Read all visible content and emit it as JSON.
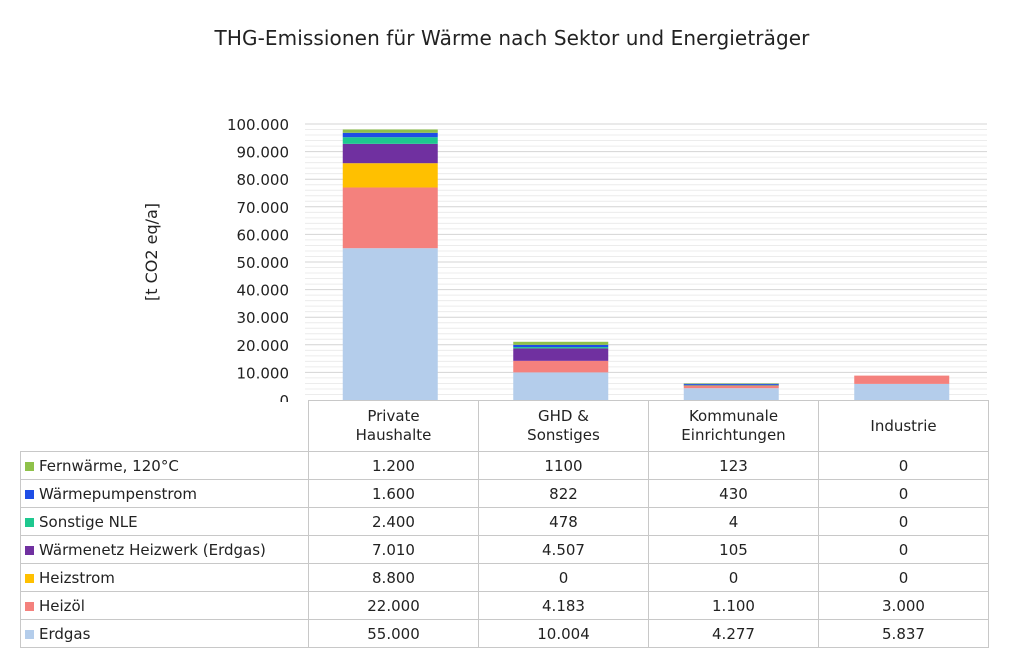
{
  "chart_data": {
    "type": "bar",
    "stacked": true,
    "title": "THG-Emissionen für Wärme nach Sektor und Energieträger",
    "ylabel": "[t CO2 eq/a]",
    "ylim": [
      0,
      100000
    ],
    "yticks": [
      "0",
      "10.000",
      "20.000",
      "30.000",
      "40.000",
      "50.000",
      "60.000",
      "70.000",
      "80.000",
      "90.000",
      "100.000"
    ],
    "categories": [
      [
        "Private",
        "Haushalte"
      ],
      [
        "GHD &",
        "Sonstiges"
      ],
      [
        "Kommunale",
        "Einrichtungen"
      ],
      [
        "Industrie"
      ]
    ],
    "series": [
      {
        "name": "Fernwärme, 120°C",
        "color": "#8fc14a",
        "values": [
          1200,
          1100,
          123,
          0
        ],
        "labels": [
          "1.200",
          "1100",
          "123",
          "0"
        ]
      },
      {
        "name": "Wärmepumpenstrom",
        "color": "#1f4ee6",
        "values": [
          1600,
          822,
          430,
          0
        ],
        "labels": [
          "1.600",
          "822",
          "430",
          "0"
        ]
      },
      {
        "name": "Sonstige NLE",
        "color": "#1ec88f",
        "values": [
          2400,
          478,
          4,
          0
        ],
        "labels": [
          "2.400",
          "478",
          "4",
          "0"
        ]
      },
      {
        "name": "Wärmenetz Heizwerk (Erdgas)",
        "color": "#7030a0",
        "values": [
          7010,
          4507,
          105,
          0
        ],
        "labels": [
          "7.010",
          "4.507",
          "105",
          "0"
        ]
      },
      {
        "name": "Heizstrom",
        "color": "#ffc000",
        "values": [
          8800,
          0,
          0,
          0
        ],
        "labels": [
          "8.800",
          "0",
          "0",
          "0"
        ]
      },
      {
        "name": "Heizöl",
        "color": "#f4817d",
        "values": [
          22000,
          4183,
          1100,
          3000
        ],
        "labels": [
          "22.000",
          "4.183",
          "1.100",
          "3.000"
        ]
      },
      {
        "name": "Erdgas",
        "color": "#b4cdeb",
        "values": [
          55000,
          10004,
          4277,
          5837
        ],
        "labels": [
          "55.000",
          "10.004",
          "4.277",
          "5.837"
        ]
      }
    ],
    "grid": true,
    "legend": "data-table"
  }
}
